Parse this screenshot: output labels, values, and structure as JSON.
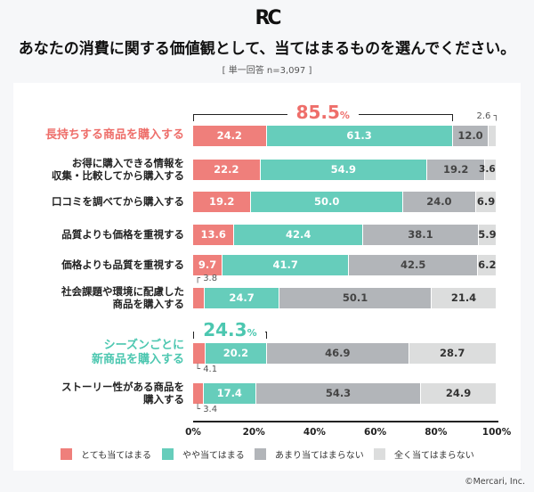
{
  "logo": "RC",
  "title": "あなたの消費に関する価値観として、当てはまるものを選んでください。",
  "subtitle": "[ 単一回答 n=3,097 ]",
  "copyright": "©Mercari, Inc.",
  "colors": {
    "very": "#ef7f7b",
    "somewhat": "#66cdbb",
    "notmuch": "#b2b5b9",
    "notatall": "#dcdddd",
    "accent_red": "#ee6e6a",
    "accent_teal": "#4cc7b0"
  },
  "chart_data": {
    "type": "bar",
    "orientation": "horizontal",
    "stacked": true,
    "xlim": [
      0,
      100
    ],
    "ticks": [
      "0%",
      "20%",
      "40%",
      "60%",
      "80%",
      "100%"
    ],
    "series_names": [
      "とても当てはまる",
      "やや当てはまる",
      "あまり当てはまらない",
      "全く当てはまらない"
    ],
    "categories": [
      {
        "label": "長持ちする商品を購入する",
        "values": [
          24.2,
          61.3,
          12.0,
          2.6
        ],
        "highlight": "red",
        "total": "85.5",
        "unit": "%"
      },
      {
        "label": "お得に購入できる情報を\n収集・比較してから購入する",
        "values": [
          22.2,
          54.9,
          19.2,
          3.6
        ]
      },
      {
        "label": "口コミを調べてから購入する",
        "values": [
          19.2,
          50.0,
          24.0,
          6.9
        ]
      },
      {
        "label": "品質よりも価格を重視する",
        "values": [
          13.6,
          42.4,
          38.1,
          5.9
        ]
      },
      {
        "label": "価格よりも品質を重視する",
        "values": [
          9.7,
          41.7,
          42.5,
          6.2
        ]
      },
      {
        "label": "社会課題や環境に配慮した\n商品を購入する",
        "values": [
          3.8,
          24.7,
          50.1,
          21.4
        ]
      },
      {
        "label": "シーズンごとに\n新商品を購入する",
        "values": [
          4.1,
          20.2,
          46.9,
          28.7
        ],
        "highlight": "teal",
        "total": "24.3",
        "unit": "%"
      },
      {
        "label": "ストーリー性がある商品を\n購入する",
        "values": [
          3.4,
          17.4,
          54.3,
          24.9
        ]
      }
    ]
  }
}
